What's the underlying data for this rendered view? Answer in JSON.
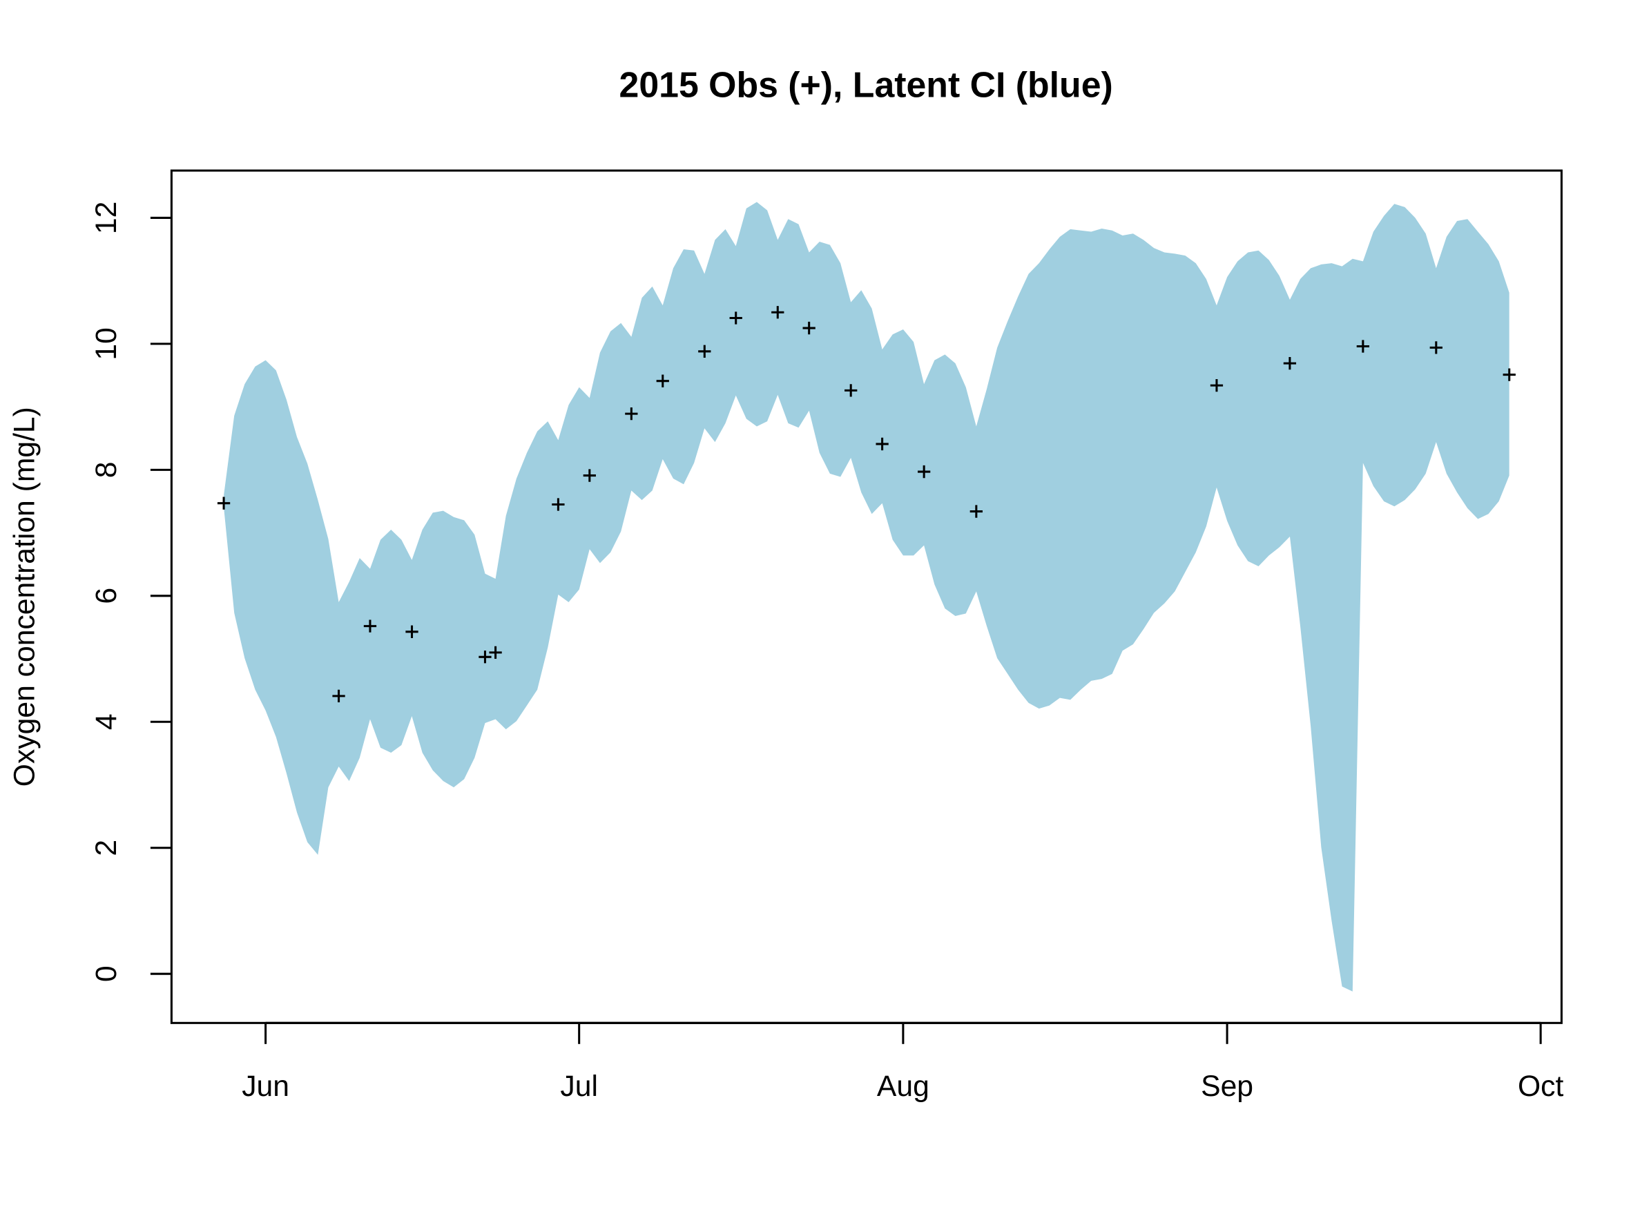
{
  "chart_data": {
    "type": "band-scatter",
    "title": "2015 Obs (+), Latent CI (blue)",
    "y_label": "Oxygen concentration (mg/L)",
    "xlim": [
      143,
      276
    ],
    "xticks": [
      {
        "value": 152,
        "label": "Jun"
      },
      {
        "value": 182,
        "label": "Jul"
      },
      {
        "value": 213,
        "label": "Aug"
      },
      {
        "value": 244,
        "label": "Sep"
      },
      {
        "value": 274,
        "label": "Oct"
      }
    ],
    "ylim": [
      -0.78,
      12.75
    ],
    "yticks": [
      0,
      2,
      4,
      6,
      8,
      10,
      12
    ],
    "ci": {
      "color": "#a0cfe0",
      "x": [
        148,
        149,
        150,
        151,
        152,
        153,
        154,
        155,
        156,
        157,
        158,
        159,
        160,
        161,
        162,
        163,
        164,
        165,
        166,
        167,
        168,
        169,
        170,
        171,
        172,
        173,
        174,
        175,
        176,
        177,
        178,
        179,
        180,
        181,
        182,
        183,
        184,
        185,
        186,
        187,
        188,
        189,
        190,
        191,
        192,
        193,
        194,
        195,
        196,
        197,
        198,
        199,
        200,
        201,
        202,
        203,
        204,
        205,
        206,
        207,
        208,
        209,
        210,
        211,
        212,
        213,
        214,
        215,
        216,
        217,
        218,
        219,
        220,
        221,
        222,
        223,
        224,
        225,
        226,
        227,
        228,
        229,
        230,
        231,
        232,
        233,
        234,
        235,
        236,
        237,
        238,
        239,
        240,
        241,
        242,
        243,
        244,
        245,
        246,
        247,
        248,
        249,
        250,
        251,
        252,
        253,
        254,
        255,
        256,
        257,
        258,
        259,
        260,
        261,
        262,
        263,
        264,
        265,
        266,
        267,
        268,
        269,
        270,
        271
      ],
      "upper": [
        7.6,
        8.86,
        9.36,
        9.64,
        9.74,
        9.58,
        9.11,
        8.52,
        8.1,
        7.52,
        6.9,
        5.9,
        6.22,
        6.6,
        6.43,
        6.89,
        7.05,
        6.89,
        6.57,
        7.05,
        7.32,
        7.35,
        7.25,
        7.2,
        6.97,
        6.35,
        6.27,
        7.27,
        7.86,
        8.27,
        8.61,
        8.77,
        8.47,
        9.03,
        9.31,
        9.14,
        9.86,
        10.2,
        10.33,
        10.11,
        10.73,
        10.91,
        10.61,
        11.2,
        11.5,
        11.48,
        11.11,
        11.65,
        11.82,
        11.55,
        12.15,
        12.25,
        12.12,
        11.65,
        11.98,
        11.9,
        11.45,
        11.62,
        11.57,
        11.28,
        10.66,
        10.85,
        10.56,
        9.91,
        10.15,
        10.23,
        10.03,
        9.36,
        9.74,
        9.83,
        9.69,
        9.31,
        8.69,
        9.28,
        9.94,
        10.36,
        10.75,
        11.11,
        11.28,
        11.5,
        11.7,
        11.82,
        11.8,
        11.78,
        11.83,
        11.8,
        11.72,
        11.75,
        11.65,
        11.52,
        11.45,
        11.43,
        11.4,
        11.28,
        11.03,
        10.61,
        11.06,
        11.31,
        11.45,
        11.48,
        11.33,
        11.08,
        10.7,
        11.03,
        11.2,
        11.26,
        11.28,
        11.23,
        11.35,
        11.31,
        11.78,
        12.03,
        12.22,
        12.17,
        12.0,
        11.75,
        11.2,
        11.7,
        11.95,
        11.98,
        11.78,
        11.58,
        11.31,
        10.81
      ],
      "lower": [
        7.4,
        5.73,
        5.01,
        4.51,
        4.18,
        3.76,
        3.18,
        2.56,
        2.09,
        1.89,
        2.96,
        3.29,
        3.06,
        3.43,
        4.04,
        3.59,
        3.51,
        3.63,
        4.09,
        3.51,
        3.23,
        3.06,
        2.96,
        3.09,
        3.43,
        3.98,
        4.04,
        3.88,
        4.01,
        4.26,
        4.51,
        5.18,
        6.02,
        5.9,
        6.1,
        6.74,
        6.52,
        6.69,
        7.02,
        7.67,
        7.52,
        7.67,
        8.17,
        7.86,
        7.77,
        8.11,
        8.66,
        8.44,
        8.74,
        9.18,
        8.81,
        8.69,
        8.77,
        9.19,
        8.74,
        8.67,
        8.94,
        8.27,
        7.94,
        7.89,
        8.19,
        7.64,
        7.3,
        7.47,
        6.89,
        6.64,
        6.64,
        6.8,
        6.18,
        5.8,
        5.68,
        5.72,
        6.07,
        5.52,
        5.01,
        4.76,
        4.51,
        4.3,
        4.21,
        4.26,
        4.38,
        4.35,
        4.51,
        4.65,
        4.68,
        4.76,
        5.13,
        5.23,
        5.47,
        5.73,
        5.88,
        6.07,
        6.38,
        6.69,
        7.1,
        7.72,
        7.19,
        6.8,
        6.55,
        6.47,
        6.64,
        6.77,
        6.94,
        5.52,
        3.93,
        2.01,
        0.84,
        -0.2,
        -0.28,
        8.11,
        7.74,
        7.5,
        7.42,
        7.52,
        7.69,
        7.94,
        8.44,
        7.94,
        7.64,
        7.39,
        7.22,
        7.3,
        7.5,
        7.91
      ]
    },
    "observations": {
      "color": "#000000",
      "x": [
        148,
        159,
        162,
        166,
        173,
        174,
        180,
        183,
        187,
        190,
        194,
        197,
        201,
        204,
        208,
        211,
        215,
        220,
        243,
        250,
        257,
        264,
        271
      ],
      "y": [
        7.47,
        4.41,
        5.52,
        5.43,
        5.03,
        5.1,
        7.45,
        7.91,
        8.89,
        9.41,
        9.88,
        10.41,
        10.5,
        10.25,
        9.26,
        8.41,
        7.97,
        7.34,
        9.34,
        9.69,
        9.96,
        9.94,
        9.51
      ]
    }
  }
}
